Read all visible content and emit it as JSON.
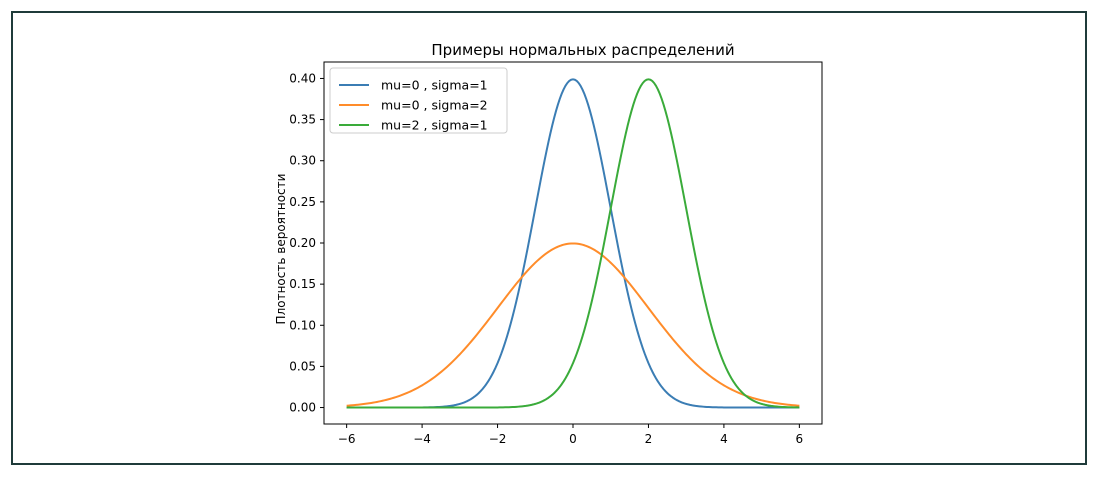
{
  "chart_data": {
    "type": "line",
    "title": "Примеры нормальных распределений",
    "xlabel": "",
    "ylabel": "Плотность вероятности",
    "xlim": [
      -6.6,
      6.6
    ],
    "ylim": [
      -0.02,
      0.42
    ],
    "x_ticks": [
      -6,
      -4,
      -2,
      0,
      2,
      4,
      6
    ],
    "x_tick_labels": [
      "−6",
      "−4",
      "−2",
      "0",
      "2",
      "4",
      "6"
    ],
    "y_ticks": [
      0.0,
      0.05,
      0.1,
      0.15,
      0.2,
      0.25,
      0.3,
      0.35,
      0.4
    ],
    "y_tick_labels": [
      "0.00",
      "0.05",
      "0.10",
      "0.15",
      "0.20",
      "0.25",
      "0.30",
      "0.35",
      "0.40"
    ],
    "x_range": [
      -6,
      6
    ],
    "grid": false,
    "legend_position": "top-left",
    "series": [
      {
        "name": "mu=0 , sigma=1",
        "mu": 0,
        "sigma": 1,
        "color": "#3b7db4"
      },
      {
        "name": "mu=0 , sigma=2",
        "mu": 0,
        "sigma": 2,
        "color": "#ff8c2a"
      },
      {
        "name": "mu=2 , sigma=1",
        "mu": 2,
        "sigma": 1,
        "color": "#3aab3a"
      }
    ]
  }
}
